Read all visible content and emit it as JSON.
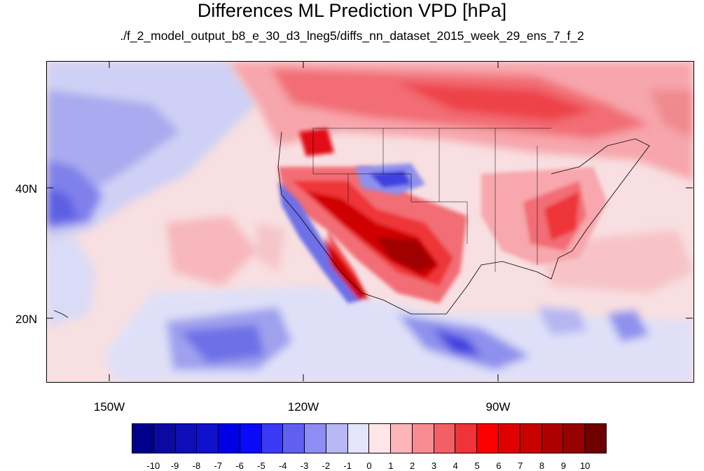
{
  "title": "Differences ML Prediction VPD [hPa]",
  "subtitle": "./f_2_model_output_b8_e_30_d3_lneg5/diffs_nn_dataset_2015_week_29_ens_7_f_2",
  "map": {
    "lon_labels": [
      "150W",
      "120W",
      "90W"
    ],
    "lat_labels": [
      "40N",
      "20N"
    ],
    "lon_range": [
      -160,
      -60
    ],
    "lat_range": [
      10,
      60
    ]
  },
  "colorbar": {
    "labels": [
      "-10",
      "-9",
      "-8",
      "-7",
      "-6",
      "-5",
      "-4",
      "-3",
      "-2",
      "-1",
      "0",
      "1",
      "2",
      "3",
      "4",
      "5",
      "6",
      "7",
      "8",
      "9",
      "10"
    ],
    "colors": [
      "#00008b",
      "#0a0aa0",
      "#0e0eb8",
      "#1010cf",
      "#0000e6",
      "#0a0afa",
      "#3a3af4",
      "#6060f0",
      "#8d8df3",
      "#b8b8f5",
      "#e4e4fb",
      "#fde6e8",
      "#fbb5bb",
      "#f78d93",
      "#f25f65",
      "#ee3438",
      "#fa0000",
      "#e00000",
      "#c80000",
      "#ad0000",
      "#960000",
      "#6e0000"
    ]
  }
}
